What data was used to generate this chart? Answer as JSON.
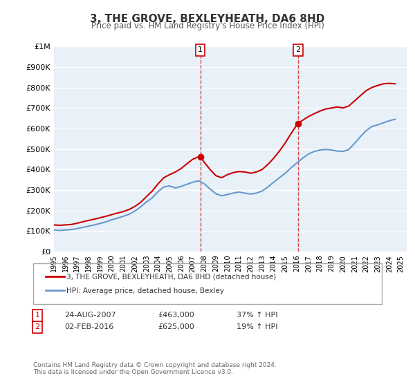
{
  "title": "3, THE GROVE, BEXLEYHEATH, DA6 8HD",
  "subtitle": "Price paid vs. HM Land Registry's House Price Index (HPI)",
  "legend_label_red": "3, THE GROVE, BEXLEYHEATH, DA6 8HD (detached house)",
  "legend_label_blue": "HPI: Average price, detached house, Bexley",
  "footer": "Contains HM Land Registry data © Crown copyright and database right 2024.\nThis data is licensed under the Open Government Licence v3.0.",
  "sale1_label": "1",
  "sale1_date": "24-AUG-2007",
  "sale1_price": "£463,000",
  "sale1_hpi": "37% ↑ HPI",
  "sale1_year": 2007.65,
  "sale1_value": 463000,
  "sale2_label": "2",
  "sale2_date": "02-FEB-2016",
  "sale2_price": "£625,000",
  "sale2_hpi": "19% ↑ HPI",
  "sale2_year": 2016.09,
  "sale2_value": 625000,
  "ylim": [
    0,
    1000000
  ],
  "xlim": [
    1995,
    2025.5
  ],
  "yticks": [
    0,
    100000,
    200000,
    300000,
    400000,
    500000,
    600000,
    700000,
    800000,
    900000,
    1000000
  ],
  "ytick_labels": [
    "£0",
    "£100K",
    "£200K",
    "£300K",
    "£400K",
    "£500K",
    "£600K",
    "£700K",
    "£800K",
    "£900K",
    "£1M"
  ],
  "red_color": "#cc0000",
  "blue_color": "#6699cc",
  "dashed_color": "#cc0000",
  "background_color": "#e8f0f8",
  "grid_color": "#ffffff",
  "red_x": [
    1995.0,
    1995.5,
    1996.0,
    1996.5,
    1997.0,
    1997.5,
    1998.0,
    1998.5,
    1999.0,
    1999.5,
    2000.0,
    2000.5,
    2001.0,
    2001.5,
    2002.0,
    2002.5,
    2003.0,
    2003.5,
    2004.0,
    2004.5,
    2005.0,
    2005.5,
    2006.0,
    2006.5,
    2007.0,
    2007.5,
    2007.65,
    2007.65,
    2008.0,
    2008.5,
    2009.0,
    2009.5,
    2010.0,
    2010.5,
    2011.0,
    2011.5,
    2012.0,
    2012.5,
    2013.0,
    2013.5,
    2014.0,
    2014.5,
    2015.0,
    2015.5,
    2016.0,
    2016.09,
    2016.09,
    2016.5,
    2017.0,
    2017.5,
    2018.0,
    2018.5,
    2019.0,
    2019.5,
    2020.0,
    2020.5,
    2021.0,
    2021.5,
    2022.0,
    2022.5,
    2023.0,
    2023.5,
    2024.0,
    2024.5
  ],
  "red_y": [
    130000,
    128000,
    130000,
    132000,
    138000,
    145000,
    152000,
    158000,
    165000,
    172000,
    180000,
    188000,
    195000,
    205000,
    220000,
    240000,
    268000,
    295000,
    330000,
    360000,
    375000,
    388000,
    405000,
    428000,
    450000,
    462000,
    463000,
    463000,
    435000,
    400000,
    370000,
    360000,
    375000,
    385000,
    390000,
    388000,
    382000,
    388000,
    400000,
    425000,
    455000,
    490000,
    530000,
    575000,
    618000,
    625000,
    625000,
    640000,
    658000,
    672000,
    685000,
    695000,
    700000,
    705000,
    700000,
    710000,
    735000,
    760000,
    785000,
    800000,
    810000,
    818000,
    820000,
    818000
  ],
  "blue_x": [
    1995.0,
    1995.5,
    1996.0,
    1996.5,
    1997.0,
    1997.5,
    1998.0,
    1998.5,
    1999.0,
    1999.5,
    2000.0,
    2000.5,
    2001.0,
    2001.5,
    2002.0,
    2002.5,
    2003.0,
    2003.5,
    2004.0,
    2004.5,
    2005.0,
    2005.5,
    2006.0,
    2006.5,
    2007.0,
    2007.5,
    2008.0,
    2008.5,
    2009.0,
    2009.5,
    2010.0,
    2010.5,
    2011.0,
    2011.5,
    2012.0,
    2012.5,
    2013.0,
    2013.5,
    2014.0,
    2014.5,
    2015.0,
    2015.5,
    2016.0,
    2016.5,
    2017.0,
    2017.5,
    2018.0,
    2018.5,
    2019.0,
    2019.5,
    2020.0,
    2020.5,
    2021.0,
    2021.5,
    2022.0,
    2022.5,
    2023.0,
    2023.5,
    2024.0,
    2024.5
  ],
  "blue_y": [
    105000,
    103000,
    105000,
    107000,
    112000,
    118000,
    124000,
    130000,
    137000,
    145000,
    155000,
    163000,
    172000,
    182000,
    198000,
    218000,
    242000,
    262000,
    292000,
    315000,
    320000,
    310000,
    318000,
    328000,
    338000,
    345000,
    330000,
    305000,
    282000,
    272000,
    278000,
    285000,
    290000,
    285000,
    280000,
    285000,
    295000,
    315000,
    338000,
    360000,
    382000,
    408000,
    432000,
    455000,
    475000,
    488000,
    495000,
    498000,
    495000,
    490000,
    488000,
    498000,
    528000,
    560000,
    590000,
    610000,
    618000,
    628000,
    638000,
    645000
  ],
  "xticks": [
    1995,
    1996,
    1997,
    1998,
    1999,
    2000,
    2001,
    2002,
    2003,
    2004,
    2005,
    2006,
    2007,
    2008,
    2009,
    2010,
    2011,
    2012,
    2013,
    2014,
    2015,
    2016,
    2017,
    2018,
    2019,
    2020,
    2021,
    2022,
    2023,
    2024,
    2025
  ]
}
